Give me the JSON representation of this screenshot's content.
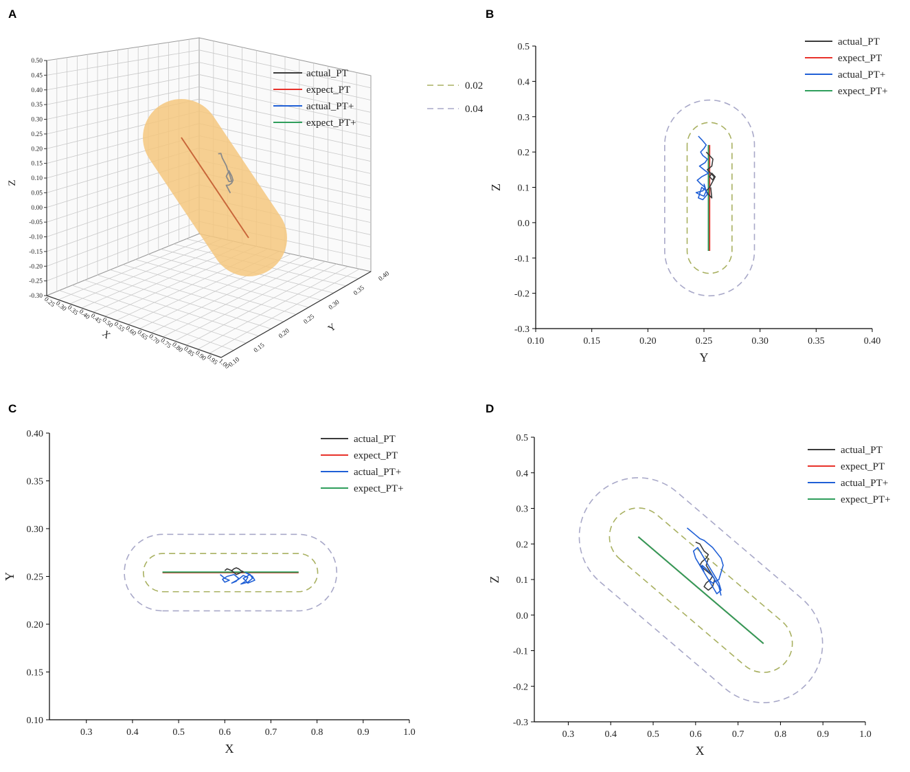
{
  "figure": {
    "panel_labels": [
      "A",
      "B",
      "C",
      "D"
    ],
    "legend_entries": [
      "actual_PT",
      "expect_PT",
      "actual_PT+",
      "expect_PT+"
    ],
    "boundary_legend": [
      "0.02",
      "0.04"
    ],
    "colors": {
      "actual_PT": "#3a3a3a",
      "expect_PT": "#e8312a",
      "actual_PT_plus": "#1f5fd6",
      "expect_PT_plus": "#2e9e5b",
      "band_002": "#a8b060",
      "band_004": "#a8a8c8",
      "tube_3d": "#f5c77e",
      "trajectory_3d": "#8a8a8a",
      "expect_3d": "#c8663a"
    }
  },
  "chart_data": [
    {
      "panel": "A",
      "type": "line",
      "projection": "3d",
      "zlabel": "Z",
      "xlabel": "X",
      "ylabel": "Y",
      "zlim": [
        -0.3,
        0.5
      ],
      "xlim": [
        0.25,
        1.0
      ],
      "ylim": [
        0.1,
        0.4
      ],
      "z_ticks": [
        "0.50",
        "0.45",
        "0.40",
        "0.35",
        "0.30",
        "0.25",
        "0.20",
        "0.15",
        "0.10",
        "0.05",
        "0.00",
        "-0.05",
        "-0.10",
        "-0.15",
        "-0.20",
        "-0.25",
        "-0.30"
      ],
      "x_ticks": [
        "0.25",
        "0.30",
        "0.35",
        "0.40",
        "0.45",
        "0.50",
        "0.55",
        "0.60",
        "0.65",
        "0.70",
        "0.75",
        "0.80",
        "0.85",
        "0.90",
        "0.95",
        "1.00"
      ],
      "y_ticks": [
        "0.10",
        "0.15",
        "0.20",
        "0.25",
        "0.30",
        "0.35",
        "0.40"
      ],
      "legend": [
        "actual_PT",
        "expect_PT",
        "actual_PT+",
        "expect_PT+"
      ],
      "boundary_legend": [
        "0.02",
        "0.04"
      ],
      "series": [
        {
          "name": "expect_PT",
          "x": [
            0.465,
            0.76
          ],
          "z": [
            0.22,
            -0.08
          ]
        },
        {
          "name": "actual_PT",
          "x": [
            0.59,
            0.6,
            0.605,
            0.61,
            0.62,
            0.625,
            0.63,
            0.635,
            0.64,
            0.63,
            0.62,
            0.625,
            0.63,
            0.64,
            0.645,
            0.64,
            0.63,
            0.62,
            0.625,
            0.63,
            0.635
          ],
          "z": [
            0.24,
            0.25,
            0.23,
            0.22,
            0.2,
            0.18,
            0.17,
            0.15,
            0.13,
            0.12,
            0.14,
            0.16,
            0.18,
            0.16,
            0.14,
            0.12,
            0.1,
            0.09,
            0.08,
            0.07,
            0.06
          ]
        }
      ]
    },
    {
      "panel": "B",
      "type": "line",
      "xlabel": "Y",
      "ylabel": "Z",
      "xlim": [
        0.1,
        0.4
      ],
      "ylim": [
        -0.3,
        0.5
      ],
      "x_ticks": [
        0.1,
        0.15,
        0.2,
        0.25,
        0.3,
        0.35,
        0.4
      ],
      "y_ticks": [
        -0.3,
        -0.2,
        -0.1,
        0.0,
        0.1,
        0.2,
        0.3,
        0.4,
        0.5
      ],
      "x_tick_labels": [
        "0.10",
        "0.15",
        "0.20",
        "0.25",
        "0.30",
        "0.35",
        "0.40"
      ],
      "y_tick_labels": [
        "-0.3",
        "-0.2",
        "-0.1",
        "0.0",
        "0.1",
        "0.2",
        "0.3",
        "0.4",
        "0.5"
      ],
      "legend": [
        "actual_PT",
        "expect_PT",
        "actual_PT+",
        "expect_PT+"
      ],
      "bands": [
        {
          "name": "0.02",
          "axis_value": 0.255,
          "from": 0.22,
          "to": -0.08,
          "radius": 0.02
        },
        {
          "name": "0.04",
          "axis_value": 0.255,
          "from": 0.22,
          "to": -0.08,
          "radius": 0.04
        }
      ],
      "series": [
        {
          "name": "expect_PT",
          "x": [
            0.255,
            0.255
          ],
          "y": [
            0.22,
            -0.08
          ]
        },
        {
          "name": "expect_PT+",
          "x": [
            0.254,
            0.254
          ],
          "y": [
            0.22,
            -0.08
          ]
        },
        {
          "name": "actual_PT",
          "x": [
            0.252,
            0.255,
            0.258,
            0.257,
            0.253,
            0.256,
            0.259,
            0.258,
            0.255,
            0.257,
            0.26,
            0.255,
            0.252,
            0.254,
            0.257,
            0.256
          ],
          "y": [
            0.2,
            0.19,
            0.18,
            0.16,
            0.15,
            0.14,
            0.13,
            0.12,
            0.13,
            0.14,
            0.13,
            0.1,
            0.09,
            0.08,
            0.07,
            0.1
          ]
        },
        {
          "name": "actual_PT+",
          "x": [
            0.245,
            0.248,
            0.252,
            0.25,
            0.247,
            0.249,
            0.253,
            0.251,
            0.246,
            0.25,
            0.254,
            0.248,
            0.244,
            0.247,
            0.251,
            0.249,
            0.243,
            0.246,
            0.25,
            0.252,
            0.248,
            0.245,
            0.249,
            0.253,
            0.25
          ],
          "y": [
            0.245,
            0.235,
            0.22,
            0.21,
            0.2,
            0.19,
            0.18,
            0.17,
            0.16,
            0.15,
            0.14,
            0.13,
            0.12,
            0.11,
            0.1,
            0.09,
            0.085,
            0.08,
            0.075,
            0.09,
            0.1,
            0.07,
            0.065,
            0.08,
            0.11
          ]
        }
      ]
    },
    {
      "panel": "C",
      "type": "line",
      "xlabel": "X",
      "ylabel": "Y",
      "xlim": [
        0.22,
        1.0
      ],
      "ylim": [
        0.1,
        0.4
      ],
      "x_ticks": [
        0.3,
        0.4,
        0.5,
        0.6,
        0.7,
        0.8,
        0.9,
        1.0
      ],
      "y_ticks": [
        0.1,
        0.15,
        0.2,
        0.25,
        0.3,
        0.35,
        0.4
      ],
      "x_tick_labels": [
        "0.3",
        "0.4",
        "0.5",
        "0.6",
        "0.7",
        "0.8",
        "0.9",
        "1.0"
      ],
      "y_tick_labels": [
        "0.10",
        "0.15",
        "0.20",
        "0.25",
        "0.30",
        "0.35",
        "0.40"
      ],
      "legend": [
        "actual_PT",
        "expect_PT",
        "actual_PT+",
        "expect_PT+"
      ],
      "bands": [
        {
          "name": "0.02",
          "axis_value": 0.254,
          "from": 0.465,
          "to": 0.76,
          "radius": 0.02
        },
        {
          "name": "0.04",
          "axis_value": 0.254,
          "from": 0.465,
          "to": 0.76,
          "radius": 0.04
        }
      ],
      "series": [
        {
          "name": "expect_PT",
          "x": [
            0.465,
            0.76
          ],
          "y": [
            0.254,
            0.254
          ]
        },
        {
          "name": "expect_PT+",
          "x": [
            0.465,
            0.76
          ],
          "y": [
            0.2545,
            0.2545
          ]
        },
        {
          "name": "actual_PT",
          "x": [
            0.6,
            0.605,
            0.61,
            0.615,
            0.62,
            0.625,
            0.63,
            0.635,
            0.64,
            0.635,
            0.63,
            0.625,
            0.62,
            0.615,
            0.61
          ],
          "y": [
            0.256,
            0.258,
            0.257,
            0.256,
            0.258,
            0.259,
            0.258,
            0.256,
            0.255,
            0.254,
            0.253,
            0.252,
            0.254,
            0.256,
            0.257
          ]
        },
        {
          "name": "actual_PT+",
          "x": [
            0.59,
            0.6,
            0.61,
            0.6,
            0.595,
            0.605,
            0.62,
            0.63,
            0.625,
            0.615,
            0.63,
            0.64,
            0.65,
            0.645,
            0.635,
            0.65,
            0.66,
            0.655,
            0.645,
            0.66,
            0.665,
            0.65,
            0.64,
            0.655,
            0.66
          ],
          "y": [
            0.252,
            0.248,
            0.246,
            0.244,
            0.247,
            0.25,
            0.252,
            0.248,
            0.245,
            0.243,
            0.247,
            0.251,
            0.249,
            0.245,
            0.242,
            0.244,
            0.248,
            0.252,
            0.254,
            0.25,
            0.246,
            0.243,
            0.248,
            0.252,
            0.249
          ]
        }
      ]
    },
    {
      "panel": "D",
      "type": "line",
      "xlabel": "X",
      "ylabel": "Z",
      "xlim": [
        0.22,
        1.0
      ],
      "ylim": [
        -0.3,
        0.5
      ],
      "x_ticks": [
        0.3,
        0.4,
        0.5,
        0.6,
        0.7,
        0.8,
        0.9,
        1.0
      ],
      "y_ticks": [
        -0.3,
        -0.2,
        -0.1,
        0.0,
        0.1,
        0.2,
        0.3,
        0.4,
        0.5
      ],
      "x_tick_labels": [
        "0.3",
        "0.4",
        "0.5",
        "0.6",
        "0.7",
        "0.8",
        "0.9",
        "1.0"
      ],
      "y_tick_labels": [
        "-0.3",
        "-0.2",
        "-0.1",
        "0.0",
        "0.1",
        "0.2",
        "0.3",
        "0.4",
        "0.5"
      ],
      "legend": [
        "actual_PT",
        "expect_PT",
        "actual_PT+",
        "expect_PT+"
      ],
      "bands": [
        {
          "name": "0.02",
          "p1": [
            0.465,
            0.22
          ],
          "p2": [
            0.76,
            -0.08
          ],
          "radius_px": 42
        },
        {
          "name": "0.04",
          "p1": [
            0.465,
            0.22
          ],
          "p2": [
            0.76,
            -0.08
          ],
          "radius_px": 86
        }
      ],
      "series": [
        {
          "name": "expect_PT",
          "x": [
            0.465,
            0.76
          ],
          "y": [
            0.22,
            -0.08
          ]
        },
        {
          "name": "expect_PT+",
          "x": [
            0.465,
            0.76
          ],
          "y": [
            0.22,
            -0.08
          ]
        },
        {
          "name": "actual_PT",
          "x": [
            0.6,
            0.61,
            0.615,
            0.62,
            0.63,
            0.625,
            0.615,
            0.61,
            0.62,
            0.63,
            0.64,
            0.635,
            0.625,
            0.62,
            0.63,
            0.64,
            0.645,
            0.635,
            0.625,
            0.63
          ],
          "y": [
            0.205,
            0.2,
            0.19,
            0.18,
            0.17,
            0.16,
            0.15,
            0.14,
            0.13,
            0.12,
            0.11,
            0.1,
            0.09,
            0.08,
            0.07,
            0.08,
            0.1,
            0.12,
            0.14,
            0.16
          ]
        },
        {
          "name": "actual_PT+",
          "x": [
            0.58,
            0.59,
            0.6,
            0.61,
            0.62,
            0.63,
            0.64,
            0.65,
            0.66,
            0.665,
            0.66,
            0.655,
            0.64,
            0.63,
            0.62,
            0.61,
            0.6,
            0.595,
            0.605,
            0.615,
            0.625,
            0.635,
            0.645,
            0.655,
            0.66,
            0.65,
            0.64,
            0.63,
            0.62,
            0.615,
            0.625,
            0.64,
            0.655,
            0.66
          ],
          "y": [
            0.245,
            0.235,
            0.225,
            0.215,
            0.21,
            0.2,
            0.19,
            0.175,
            0.16,
            0.14,
            0.12,
            0.1,
            0.09,
            0.1,
            0.12,
            0.14,
            0.16,
            0.18,
            0.19,
            0.17,
            0.15,
            0.13,
            0.11,
            0.09,
            0.07,
            0.06,
            0.08,
            0.1,
            0.12,
            0.14,
            0.13,
            0.11,
            0.08,
            0.055
          ]
        }
      ]
    }
  ]
}
